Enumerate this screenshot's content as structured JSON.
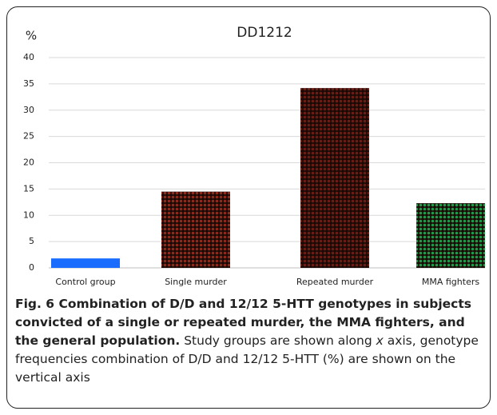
{
  "chart_data": {
    "type": "bar",
    "title": "DD1212",
    "ylabel": "%",
    "categories": [
      "Control group",
      "Single murder",
      "Repeated murder",
      "MMA fighters"
    ],
    "values": [
      1.8,
      14.5,
      34.2,
      12.3
    ],
    "colors": [
      "#1a6cff",
      "#8e2a1c",
      "#6b1c14",
      "#1f9a4a"
    ],
    "ylim": [
      0,
      40
    ],
    "yticks": [
      0,
      5,
      10,
      15,
      20,
      25,
      30,
      35,
      40
    ],
    "grid": true
  },
  "caption": {
    "bold": "Fig. 6 Combination of D/D and 12/12 5-HTT genotypes in subjects convicted of a single or repeated murder, the MMA fighters, and the general population.",
    "parts": [
      "Study groups are shown along ",
      "x",
      " axis, genotype frequencies combination of D/D and 12/12 5-HTT (%) are shown on the vertical axis"
    ]
  }
}
